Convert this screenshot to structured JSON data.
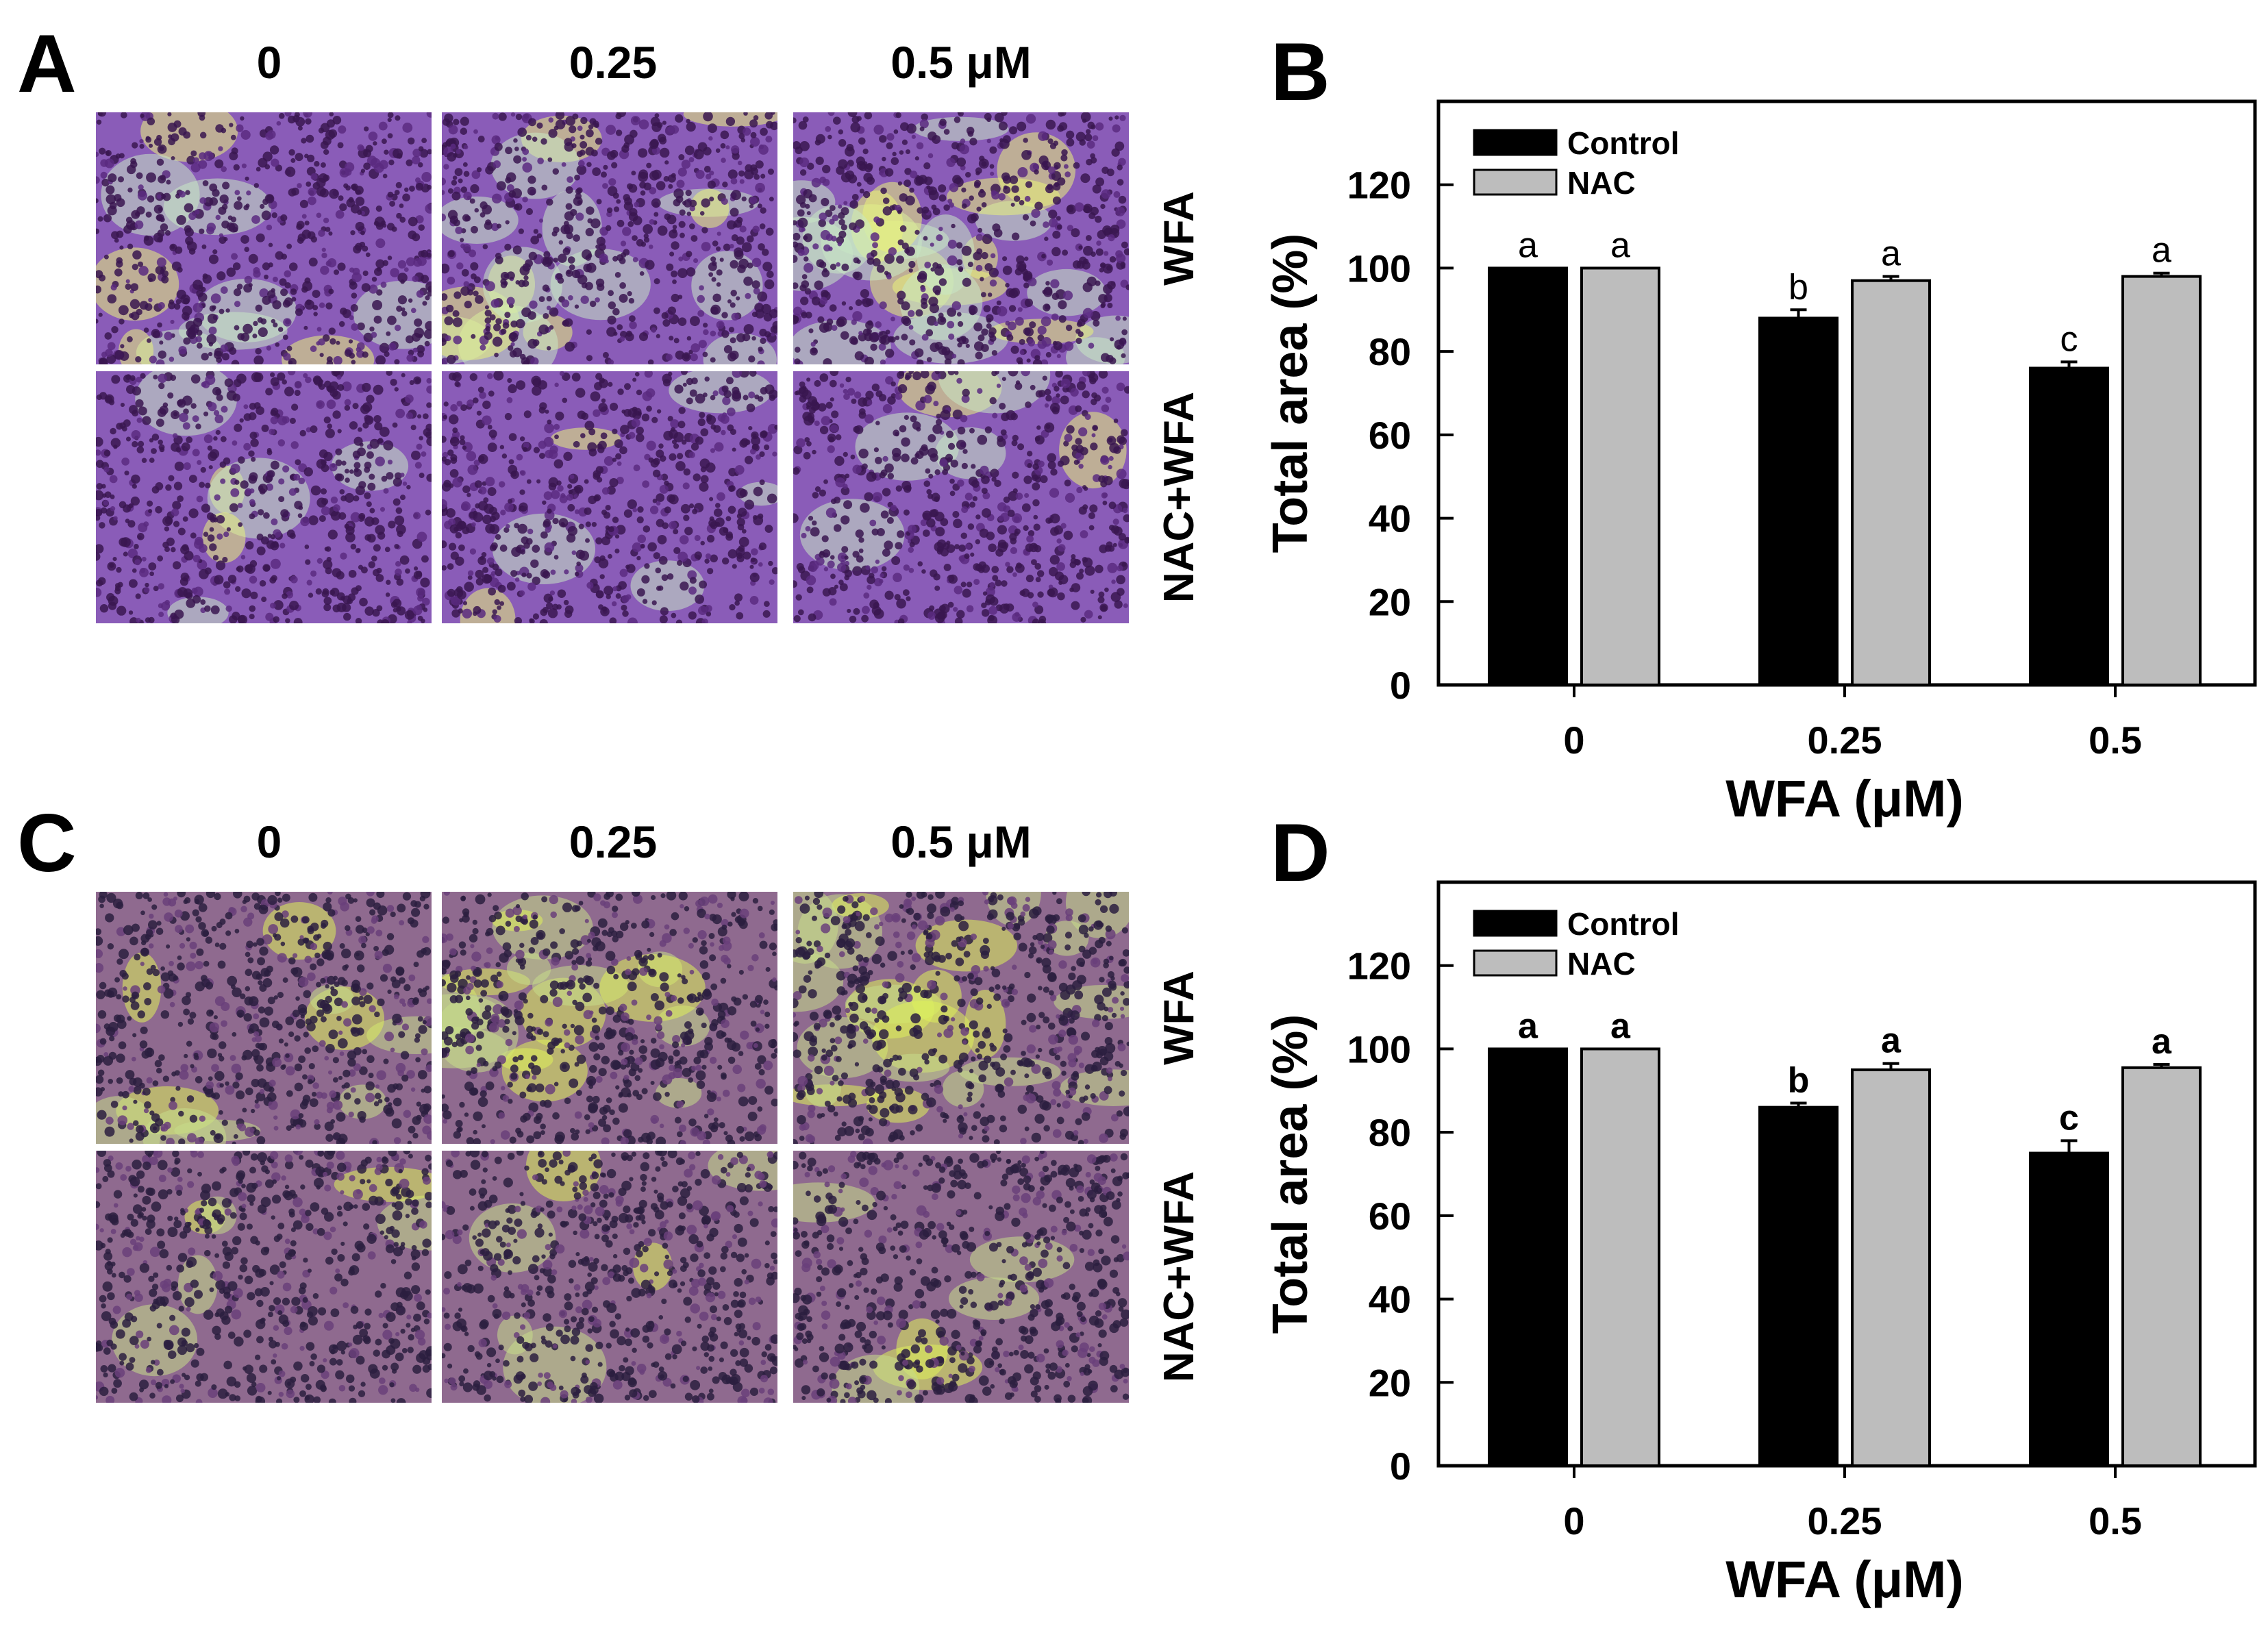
{
  "figure": {
    "panel_letters": [
      "A",
      "B",
      "C",
      "D"
    ],
    "micrograph_panels": [
      {
        "letter": "A",
        "column_labels": [
          "0",
          "0.25",
          "0.5 μM"
        ],
        "row_labels": [
          "WFA",
          "NAC+WFA"
        ],
        "palette": {
          "cell": "#3a1650",
          "cell_alt": "#5a2a80",
          "membrane": "#8a5cb8",
          "background_light": "#c9e7c4",
          "highlight": "#e9f27a"
        }
      },
      {
        "letter": "C",
        "column_labels": [
          "0",
          "0.25",
          "0.5 μM"
        ],
        "row_labels": [
          "WFA",
          "NAC+WFA"
        ],
        "palette": {
          "cell": "#2c1f40",
          "cell_alt": "#6a3f7a",
          "membrane": "#8f6a8f",
          "background_light": "#c7dc8a",
          "highlight": "#dff05a"
        }
      }
    ]
  },
  "chart_data": [
    {
      "panel": "B",
      "type": "bar",
      "categories": [
        "0",
        "0.25",
        "0.5"
      ],
      "series": [
        {
          "name": "Control",
          "color": "#000000",
          "values": [
            100,
            88,
            76
          ],
          "errors": [
            0,
            2,
            1.5
          ],
          "letters": [
            "a",
            "b",
            "c"
          ]
        },
        {
          "name": "NAC",
          "color": "#bdbdbd",
          "values": [
            100,
            97,
            98
          ],
          "errors": [
            0,
            1,
            0.8
          ],
          "letters": [
            "a",
            "a",
            "a"
          ]
        }
      ],
      "ylim": [
        0,
        140
      ],
      "yticks": [
        0,
        20,
        40,
        60,
        80,
        100,
        120
      ],
      "xlabel": "WFA (μM)",
      "ylabel": "Total area (%)",
      "legend": "top-left",
      "letter_style": "normal"
    },
    {
      "panel": "D",
      "type": "bar",
      "categories": [
        "0",
        "0.25",
        "0.5"
      ],
      "series": [
        {
          "name": "Control",
          "color": "#000000",
          "values": [
            100,
            86,
            75
          ],
          "errors": [
            0,
            1,
            3
          ],
          "letters": [
            "a",
            "b",
            "c"
          ]
        },
        {
          "name": "NAC",
          "color": "#bdbdbd",
          "values": [
            100,
            95,
            95.5
          ],
          "errors": [
            0,
            1.5,
            0.8
          ],
          "letters": [
            "a",
            "a",
            "a"
          ]
        }
      ],
      "ylim": [
        0,
        140
      ],
      "yticks": [
        0,
        20,
        40,
        60,
        80,
        100,
        120
      ],
      "xlabel": "WFA (μM)",
      "ylabel": "Total area (%)",
      "legend": "top-left",
      "letter_style": "bold"
    }
  ]
}
